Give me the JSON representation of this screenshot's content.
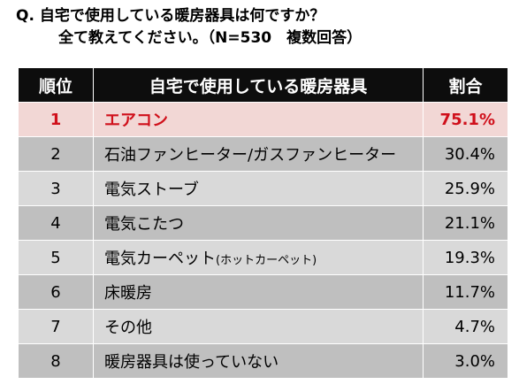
{
  "question": {
    "line1": "Q. 自宅で使用している暖房器具は何ですか？",
    "line2": "全て教えてください。（N=530　複数回答）"
  },
  "table": {
    "headers": {
      "rank": "順位",
      "item": "自宅で使用している暖房器具",
      "share": "割合"
    },
    "rows": [
      {
        "rank": "1",
        "item": "エアコン",
        "item_note": "",
        "share": "75.1%",
        "highlight": true
      },
      {
        "rank": "2",
        "item": "石油ファンヒーター/ガスファンヒーター",
        "item_note": "",
        "share": "30.4%",
        "highlight": false
      },
      {
        "rank": "3",
        "item": "電気ストーブ",
        "item_note": "",
        "share": "25.9%",
        "highlight": false
      },
      {
        "rank": "4",
        "item": "電気こたつ",
        "item_note": "",
        "share": "21.1%",
        "highlight": false
      },
      {
        "rank": "5",
        "item": "電気カーペット",
        "item_note": "(ホットカーペット)",
        "share": "19.3%",
        "highlight": false
      },
      {
        "rank": "6",
        "item": "床暖房",
        "item_note": "",
        "share": "11.7%",
        "highlight": false
      },
      {
        "rank": "7",
        "item": "その他",
        "item_note": "",
        "share": "4.7%",
        "highlight": false
      },
      {
        "rank": "8",
        "item": "暖房器具は使っていない",
        "item_note": "",
        "share": "3.0%",
        "highlight": false
      }
    ]
  },
  "colors": {
    "header_bg": "#0d0d0d",
    "header_text": "#ffffff",
    "row_dark": "#bfbfbf",
    "row_light": "#d9d9d9",
    "highlight_bg": "#f2d7d5",
    "highlight_text": "#d0101b"
  }
}
